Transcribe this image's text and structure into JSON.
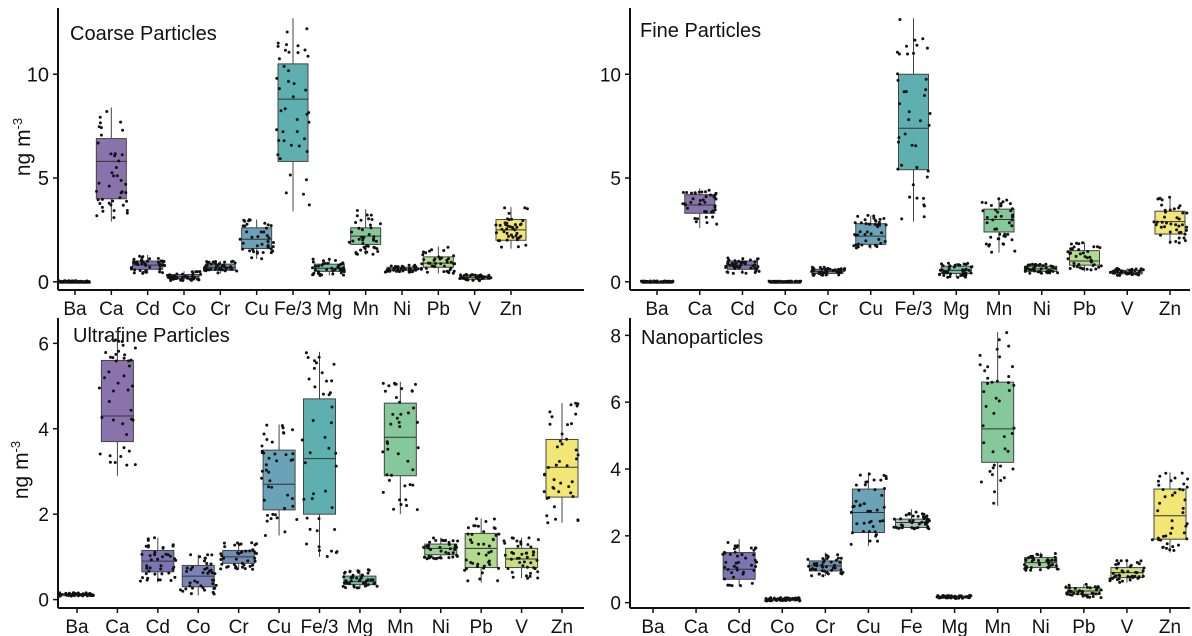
{
  "chart_data": [
    {
      "type": "box",
      "title": "Coarse Particles",
      "ylabel": "ng  m",
      "ylabel_sup": "-3",
      "ylim": [
        -0.3,
        13
      ],
      "yticks": [
        0,
        5,
        10
      ],
      "categories": [
        "Ba",
        "Ca",
        "Cd",
        "Co",
        "Cr",
        "Cu",
        "Fe/3",
        "Mg",
        "Mn",
        "Ni",
        "Pb",
        "V",
        "Zn"
      ],
      "boxes": [
        {
          "min": 0.0,
          "q1": 0.0,
          "median": 0.0,
          "q3": 0.02,
          "max": 0.05
        },
        {
          "min": 2.9,
          "q1": 4.0,
          "median": 5.8,
          "q3": 6.9,
          "max": 8.4
        },
        {
          "min": 0.4,
          "q1": 0.6,
          "median": 0.8,
          "q3": 1.0,
          "max": 1.3
        },
        {
          "min": 0.05,
          "q1": 0.15,
          "median": 0.25,
          "q3": 0.35,
          "max": 0.5
        },
        {
          "min": 0.4,
          "q1": 0.55,
          "median": 0.7,
          "q3": 0.85,
          "max": 1.0
        },
        {
          "min": 1.1,
          "q1": 1.6,
          "median": 2.05,
          "q3": 2.6,
          "max": 3.0
        },
        {
          "min": 3.4,
          "q1": 5.8,
          "median": 8.8,
          "q3": 10.5,
          "max": 12.7
        },
        {
          "min": 0.3,
          "q1": 0.5,
          "median": 0.65,
          "q3": 0.85,
          "max": 1.1
        },
        {
          "min": 1.3,
          "q1": 1.8,
          "median": 2.2,
          "q3": 2.6,
          "max": 3.5
        },
        {
          "min": 0.45,
          "q1": 0.55,
          "median": 0.62,
          "q3": 0.7,
          "max": 0.8
        },
        {
          "min": 0.4,
          "q1": 0.7,
          "median": 0.9,
          "q3": 1.2,
          "max": 1.7
        },
        {
          "min": 0.05,
          "q1": 0.12,
          "median": 0.2,
          "q3": 0.28,
          "max": 0.35
        },
        {
          "min": 1.6,
          "q1": 2.0,
          "median": 2.5,
          "q3": 3.0,
          "max": 3.6
        }
      ],
      "colors": [
        "#5e5e5e",
        "#8a73ad",
        "#7d74b4",
        "#7a83b5",
        "#6f8fb5",
        "#6aa3b8",
        "#5eb0b0",
        "#72bfa3",
        "#85c99a",
        "#9bcf93",
        "#b2da8c",
        "#cadf80",
        "#f2e775"
      ]
    },
    {
      "type": "box",
      "title": "Fine Particles",
      "ylabel": "",
      "ylabel_sup": "",
      "ylim": [
        -0.3,
        13
      ],
      "yticks": [
        0,
        5,
        10
      ],
      "categories": [
        "Ba",
        "Ca",
        "Cd",
        "Co",
        "Cr",
        "Cu",
        "Fe/3",
        "Mg",
        "Mn",
        "Ni",
        "Pb",
        "V",
        "Zn"
      ],
      "boxes": [
        {
          "min": 0.0,
          "q1": 0.0,
          "median": 0.0,
          "q3": 0.02,
          "max": 0.04
        },
        {
          "min": 2.6,
          "q1": 3.3,
          "median": 3.7,
          "q3": 4.2,
          "max": 4.5
        },
        {
          "min": 0.4,
          "q1": 0.6,
          "median": 0.8,
          "q3": 1.0,
          "max": 1.2
        },
        {
          "min": 0.0,
          "q1": 0.0,
          "median": 0.0,
          "q3": 0.02,
          "max": 0.03
        },
        {
          "min": 0.3,
          "q1": 0.4,
          "median": 0.5,
          "q3": 0.6,
          "max": 0.7
        },
        {
          "min": 1.6,
          "q1": 1.8,
          "median": 2.2,
          "q3": 2.8,
          "max": 3.2
        },
        {
          "min": 2.9,
          "q1": 5.4,
          "median": 7.4,
          "q3": 10.0,
          "max": 12.7
        },
        {
          "min": 0.2,
          "q1": 0.4,
          "median": 0.55,
          "q3": 0.75,
          "max": 0.9
        },
        {
          "min": 1.4,
          "q1": 2.4,
          "median": 3.0,
          "q3": 3.5,
          "max": 4.0
        },
        {
          "min": 0.4,
          "q1": 0.5,
          "median": 0.62,
          "q3": 0.75,
          "max": 0.85
        },
        {
          "min": 0.5,
          "q1": 0.8,
          "median": 1.0,
          "q3": 1.5,
          "max": 1.9
        },
        {
          "min": 0.3,
          "q1": 0.38,
          "median": 0.45,
          "q3": 0.55,
          "max": 0.65
        },
        {
          "min": 1.8,
          "q1": 2.3,
          "median": 2.9,
          "q3": 3.4,
          "max": 4.1
        }
      ],
      "colors": [
        "#5e5e5e",
        "#8a73ad",
        "#7d74b4",
        "#7a83b5",
        "#6f8fb5",
        "#6aa3b8",
        "#5eb0b0",
        "#72bfa3",
        "#85c99a",
        "#9bcf93",
        "#b2da8c",
        "#cadf80",
        "#f2e775"
      ]
    },
    {
      "type": "box",
      "title": "Ultrafine Particles",
      "ylabel": "ng  m",
      "ylabel_sup": "-3",
      "ylim": [
        -0.15,
        6.5
      ],
      "yticks": [
        0,
        2,
        4,
        6
      ],
      "categories": [
        "Ba",
        "Ca",
        "Cd",
        "Co",
        "Cr",
        "Cu",
        "Fe/3",
        "Mg",
        "Mn",
        "Ni",
        "Pb",
        "V",
        "Zn"
      ],
      "boxes": [
        {
          "min": 0.08,
          "q1": 0.1,
          "median": 0.12,
          "q3": 0.14,
          "max": 0.16
        },
        {
          "min": 2.9,
          "q1": 3.7,
          "median": 4.3,
          "q3": 5.6,
          "max": 6.3
        },
        {
          "min": 0.4,
          "q1": 0.65,
          "median": 0.9,
          "q3": 1.15,
          "max": 1.45
        },
        {
          "min": 0.1,
          "q1": 0.3,
          "median": 0.55,
          "q3": 0.8,
          "max": 1.05
        },
        {
          "min": 0.7,
          "q1": 0.85,
          "median": 1.0,
          "q3": 1.15,
          "max": 1.35
        },
        {
          "min": 1.5,
          "q1": 2.1,
          "median": 2.7,
          "q3": 3.5,
          "max": 4.1
        },
        {
          "min": 1.0,
          "q1": 2.0,
          "median": 3.3,
          "q3": 4.7,
          "max": 5.8
        },
        {
          "min": 0.25,
          "q1": 0.35,
          "median": 0.42,
          "q3": 0.55,
          "max": 0.7
        },
        {
          "min": 2.0,
          "q1": 2.9,
          "median": 3.8,
          "q3": 4.6,
          "max": 5.1
        },
        {
          "min": 0.95,
          "q1": 1.05,
          "median": 1.2,
          "q3": 1.3,
          "max": 1.45
        },
        {
          "min": 0.4,
          "q1": 0.75,
          "median": 1.2,
          "q3": 1.55,
          "max": 1.9
        },
        {
          "min": 0.5,
          "q1": 0.75,
          "median": 0.95,
          "q3": 1.2,
          "max": 1.45
        },
        {
          "min": 1.8,
          "q1": 2.4,
          "median": 3.1,
          "q3": 3.75,
          "max": 4.6
        }
      ],
      "colors": [
        "#5e5e5e",
        "#8a73ad",
        "#7d74b4",
        "#7a83b5",
        "#6f8fb5",
        "#6aa3b8",
        "#5eb0b0",
        "#72bfa3",
        "#85c99a",
        "#9bcf93",
        "#b2da8c",
        "#cadf80",
        "#f2e775"
      ]
    },
    {
      "type": "box",
      "title": "Nanoparticles",
      "ylabel": "",
      "ylabel_sup": "",
      "ylim": [
        -0.1,
        8.4
      ],
      "yticks": [
        0,
        2,
        4,
        6,
        8
      ],
      "categories": [
        "Ba",
        "Ca",
        "Cd",
        "Co",
        "Cr",
        "Cu",
        "Fe",
        "Mg",
        "Mn",
        "Ni",
        "Pb",
        "V",
        "Zn"
      ],
      "boxes": [
        null,
        null,
        {
          "min": 0.5,
          "q1": 0.7,
          "median": 1.0,
          "q3": 1.5,
          "max": 1.9
        },
        {
          "min": 0.05,
          "q1": 0.07,
          "median": 0.1,
          "q3": 0.12,
          "max": 0.15
        },
        {
          "min": 0.8,
          "q1": 0.95,
          "median": 1.1,
          "q3": 1.25,
          "max": 1.5
        },
        {
          "min": 1.7,
          "q1": 2.1,
          "median": 2.7,
          "q3": 3.4,
          "max": 3.9
        },
        {
          "min": 2.2,
          "q1": 2.25,
          "median": 2.4,
          "q3": 2.5,
          "max": 2.8
        },
        {
          "min": 0.12,
          "q1": 0.15,
          "median": 0.18,
          "q3": 0.2,
          "max": 0.22
        },
        {
          "min": 2.9,
          "q1": 4.2,
          "median": 5.2,
          "q3": 6.6,
          "max": 8.1
        },
        {
          "min": 0.95,
          "q1": 1.05,
          "median": 1.2,
          "q3": 1.35,
          "max": 1.5
        },
        {
          "min": 0.15,
          "q1": 0.25,
          "median": 0.35,
          "q3": 0.45,
          "max": 0.55
        },
        {
          "min": 0.6,
          "q1": 0.75,
          "median": 0.9,
          "q3": 1.05,
          "max": 1.3
        },
        {
          "min": 1.5,
          "q1": 1.9,
          "median": 2.6,
          "q3": 3.4,
          "max": 3.9
        }
      ],
      "colors": [
        "#5e5e5e",
        "#8a73ad",
        "#7d74b4",
        "#7a83b5",
        "#6f8fb5",
        "#6aa3b8",
        "#a9c4bd",
        "#72bfa3",
        "#85c99a",
        "#9bcf93",
        "#b2da8c",
        "#cadf80",
        "#f2e775"
      ]
    }
  ]
}
